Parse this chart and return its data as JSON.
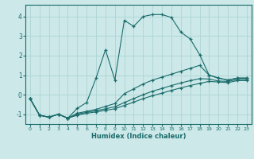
{
  "xlabel": "Humidex (Indice chaleur)",
  "bg_color": "#cce8e8",
  "line_color": "#1a6b6b",
  "grid_color": "#aed4d4",
  "xlim": [
    -0.5,
    23.5
  ],
  "ylim": [
    -1.5,
    4.6
  ],
  "xticks": [
    0,
    1,
    2,
    3,
    4,
    5,
    6,
    7,
    8,
    9,
    10,
    11,
    12,
    13,
    14,
    15,
    16,
    17,
    18,
    19,
    20,
    21,
    22,
    23
  ],
  "yticks": [
    -1,
    0,
    1,
    2,
    3,
    4
  ],
  "curve1_x": [
    0,
    1,
    2,
    3,
    4,
    5,
    6,
    7,
    8,
    9,
    10,
    11,
    12,
    13,
    14,
    15,
    16,
    17,
    18,
    19,
    20,
    21,
    22,
    23
  ],
  "curve1_y": [
    -0.2,
    -1.05,
    -1.15,
    -1.0,
    -1.2,
    -0.7,
    -0.4,
    0.85,
    2.3,
    0.75,
    3.8,
    3.5,
    4.0,
    4.1,
    4.1,
    3.95,
    3.2,
    2.85,
    2.05,
    1.0,
    0.85,
    0.75,
    0.85,
    0.85
  ],
  "curve2_x": [
    0,
    1,
    2,
    3,
    4,
    5,
    6,
    7,
    8,
    9,
    10,
    11,
    12,
    13,
    14,
    15,
    16,
    17,
    18,
    19,
    20,
    21,
    22,
    23
  ],
  "curve2_y": [
    -0.2,
    -1.05,
    -1.15,
    -1.0,
    -1.2,
    -0.95,
    -0.85,
    -0.75,
    -0.6,
    -0.45,
    0.05,
    0.3,
    0.55,
    0.75,
    0.9,
    1.05,
    1.2,
    1.35,
    1.5,
    1.0,
    0.85,
    0.75,
    0.85,
    0.85
  ],
  "curve3_x": [
    0,
    1,
    2,
    3,
    4,
    5,
    6,
    7,
    8,
    9,
    10,
    11,
    12,
    13,
    14,
    15,
    16,
    17,
    18,
    19,
    20,
    21,
    22,
    23
  ],
  "curve3_y": [
    -0.2,
    -1.05,
    -1.15,
    -1.0,
    -1.2,
    -1.0,
    -0.9,
    -0.82,
    -0.72,
    -0.62,
    -0.4,
    -0.2,
    0.0,
    0.18,
    0.32,
    0.47,
    0.6,
    0.72,
    0.82,
    0.8,
    0.7,
    0.68,
    0.78,
    0.78
  ],
  "curve4_x": [
    0,
    1,
    2,
    3,
    4,
    5,
    6,
    7,
    8,
    9,
    10,
    11,
    12,
    13,
    14,
    15,
    16,
    17,
    18,
    19,
    20,
    21,
    22,
    23
  ],
  "curve4_y": [
    -0.2,
    -1.05,
    -1.15,
    -1.0,
    -1.2,
    -1.05,
    -0.95,
    -0.88,
    -0.8,
    -0.72,
    -0.55,
    -0.38,
    -0.2,
    -0.05,
    0.08,
    0.22,
    0.35,
    0.47,
    0.58,
    0.68,
    0.65,
    0.62,
    0.72,
    0.72
  ]
}
